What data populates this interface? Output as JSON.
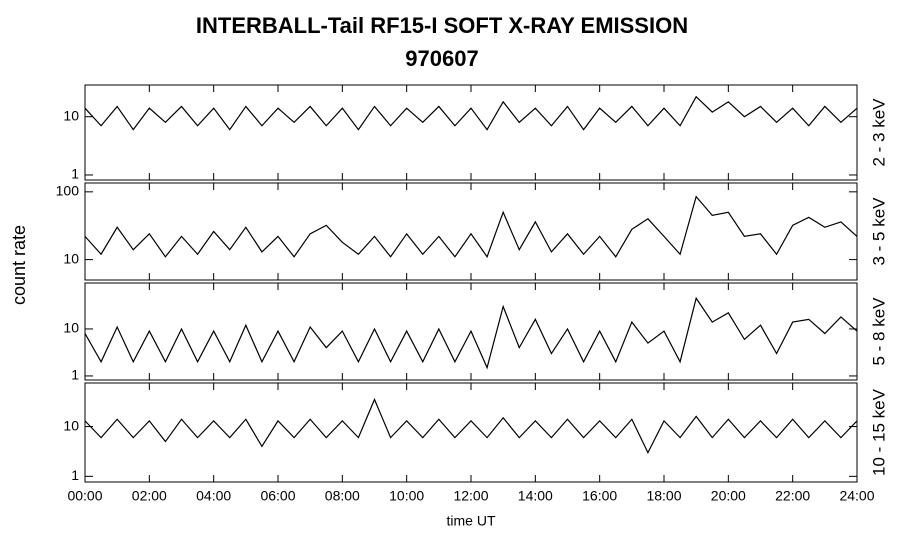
{
  "title": "INTERBALL-Tail RF15-I SOFT X-RAY EMISSION",
  "subtitle": "970607",
  "y_label": "count rate",
  "x_label": "time UT",
  "x_axis": {
    "xlim": [
      0,
      24
    ],
    "xticks": [
      {
        "value": 0,
        "label": "00:00"
      },
      {
        "value": 2,
        "label": "02:00"
      },
      {
        "value": 4,
        "label": "04:00"
      },
      {
        "value": 6,
        "label": "06:00"
      },
      {
        "value": 8,
        "label": "08:00"
      },
      {
        "value": 10,
        "label": "10:00"
      },
      {
        "value": 12,
        "label": "12:00"
      },
      {
        "value": 14,
        "label": "14:00"
      },
      {
        "value": 16,
        "label": "16:00"
      },
      {
        "value": 18,
        "label": "18:00"
      },
      {
        "value": 20,
        "label": "20:00"
      },
      {
        "value": 22,
        "label": "22:00"
      },
      {
        "value": 24,
        "label": "24:00"
      }
    ],
    "x": [
      0,
      0.5,
      1,
      1.5,
      2,
      2.5,
      3,
      3.5,
      4,
      4.5,
      5,
      5.5,
      6,
      6.5,
      7,
      7.5,
      8,
      8.5,
      9,
      9.5,
      10,
      10.5,
      11,
      11.5,
      12,
      12.5,
      13,
      13.5,
      14,
      14.5,
      15,
      15.5,
      16,
      16.5,
      17,
      17.5,
      18,
      18.5,
      19,
      19.5,
      20,
      20.5,
      21,
      21.5,
      22,
      22.5,
      23,
      23.5,
      24
    ]
  },
  "chart_data": [
    {
      "type": "line",
      "y_label": "2 - 3 keV",
      "log": true,
      "color": "#000000",
      "ylim": [
        0.82,
        35
      ],
      "yticks": [
        1,
        10
      ],
      "values": [
        14,
        7,
        15,
        6,
        14,
        8,
        15,
        7,
        14,
        6,
        15,
        7,
        14,
        8,
        15,
        7,
        14,
        6,
        15,
        7,
        14,
        8,
        15,
        7,
        14,
        6,
        18,
        8,
        14,
        7,
        15,
        6,
        14,
        8,
        15,
        7,
        14,
        7,
        22,
        12,
        18,
        10,
        15,
        8,
        14,
        7,
        15,
        8,
        14
      ]
    },
    {
      "type": "line",
      "y_label": "3 - 5 keV",
      "log": true,
      "color": "#000000",
      "ylim": [
        5,
        135
      ],
      "yticks": [
        10,
        100
      ],
      "values": [
        22,
        12,
        30,
        14,
        24,
        11,
        22,
        12,
        26,
        14,
        30,
        13,
        22,
        11,
        24,
        32,
        18,
        12,
        22,
        11,
        24,
        12,
        22,
        11,
        24,
        11,
        50,
        14,
        36,
        13,
        24,
        12,
        22,
        11,
        28,
        40,
        22,
        12,
        85,
        45,
        50,
        22,
        24,
        12,
        32,
        42,
        30,
        36,
        22
      ]
    },
    {
      "type": "line",
      "y_label": "5 - 8 keV",
      "log": true,
      "color": "#000000",
      "ylim": [
        0.82,
        95
      ],
      "yticks": [
        1,
        10
      ],
      "values": [
        8,
        2,
        11,
        2,
        9,
        2,
        10,
        2,
        9,
        2,
        12,
        2,
        9,
        2,
        11,
        4,
        9,
        2,
        10,
        2,
        9,
        2,
        10,
        2,
        9,
        1.5,
        30,
        4,
        16,
        3,
        10,
        2,
        9,
        2,
        14,
        5,
        9,
        2,
        45,
        14,
        22,
        6,
        12,
        3,
        14,
        16,
        8,
        18,
        9
      ]
    },
    {
      "type": "line",
      "y_label": "10 - 15 keV",
      "log": true,
      "color": "#000000",
      "ylim": [
        0.77,
        75
      ],
      "yticks": [
        1,
        10
      ],
      "values": [
        13,
        6,
        14,
        6,
        13,
        5,
        14,
        6,
        13,
        6,
        14,
        4,
        13,
        6,
        14,
        6,
        13,
        6,
        35,
        6,
        13,
        6,
        14,
        6,
        13,
        6,
        15,
        6,
        13,
        6,
        14,
        6,
        13,
        6,
        14,
        3,
        13,
        6,
        16,
        6,
        14,
        6,
        13,
        6,
        14,
        6,
        13,
        6,
        13
      ]
    }
  ]
}
